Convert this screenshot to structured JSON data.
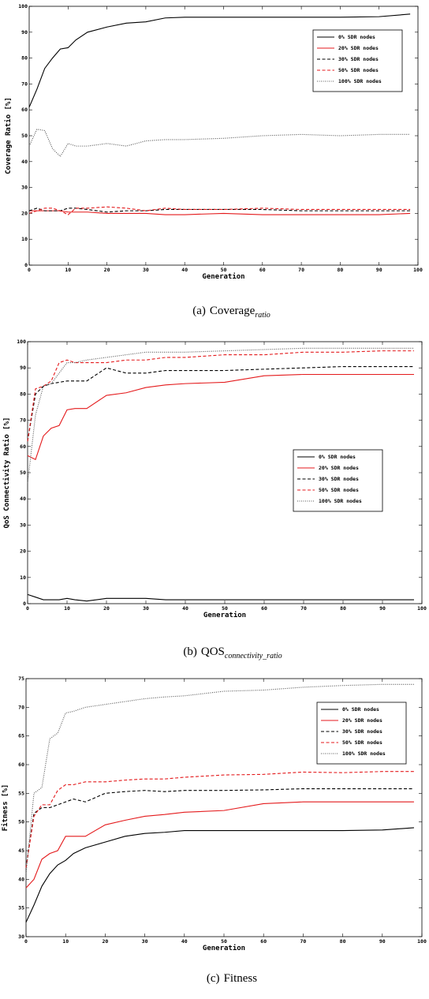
{
  "chart_data": [
    {
      "type": "line",
      "caption_label": "(a)",
      "caption_text": "Coverage",
      "caption_sub": "ratio",
      "xlabel": "Generation",
      "ylabel": "Coverage Ratio [%]",
      "x": [
        0,
        2,
        4,
        6,
        8,
        10,
        12,
        15,
        20,
        25,
        30,
        35,
        40,
        50,
        60,
        70,
        80,
        90,
        98
      ],
      "xlim": [
        0,
        100
      ],
      "xticks": [
        0,
        10,
        20,
        30,
        40,
        50,
        60,
        70,
        80,
        90,
        100
      ],
      "ylim": [
        0,
        100
      ],
      "yticks": [
        0,
        10,
        20,
        30,
        40,
        50,
        60,
        70,
        80,
        90,
        100
      ],
      "legend_position": "upper right",
      "series": [
        {
          "name": "0% SDR nodes",
          "color": "#000000",
          "dash": "solid",
          "values": [
            61,
            68,
            76,
            80,
            83.5,
            84,
            87,
            90,
            92,
            93.5,
            94,
            95.5,
            95.8,
            95.8,
            95.8,
            95.8,
            95.8,
            96,
            97
          ]
        },
        {
          "name": "20% SDR nodes",
          "color": "#e41a1c",
          "dash": "solid",
          "values": [
            21,
            21,
            21,
            21,
            21,
            20.5,
            20.5,
            20.5,
            20,
            20,
            20,
            19.5,
            19.5,
            20,
            19.5,
            19.5,
            19.5,
            19.5,
            20
          ]
        },
        {
          "name": "30% SDR nodes",
          "color": "#000000",
          "dash": "dashed",
          "values": [
            21,
            22,
            21,
            21,
            21,
            22,
            22,
            21.5,
            20.5,
            21,
            21,
            21.5,
            21.5,
            21.5,
            21.5,
            21,
            21,
            21,
            21
          ]
        },
        {
          "name": "50% SDR nodes",
          "color": "#e41a1c",
          "dash": "dashed",
          "values": [
            20,
            21,
            22,
            22,
            21,
            19.5,
            22,
            22,
            22.5,
            22,
            21,
            22,
            21.5,
            21.5,
            22,
            21.5,
            21.5,
            21.5,
            21.5
          ]
        },
        {
          "name": "100% SDR nodes",
          "color": "#555555",
          "dash": "dotted",
          "values": [
            46,
            52.5,
            52,
            45,
            42,
            47,
            46,
            46,
            47,
            46,
            48,
            48.5,
            48.5,
            49,
            50,
            50.5,
            50,
            50.5,
            50.5
          ]
        }
      ]
    },
    {
      "type": "line",
      "caption_label": "(b)",
      "caption_text": "QOS",
      "caption_sub": "connectivity_ratio",
      "xlabel": "Generation",
      "ylabel": "QoS Connectivity Ratio [%]",
      "x": [
        0,
        2,
        4,
        6,
        8,
        10,
        12,
        15,
        20,
        25,
        30,
        35,
        40,
        50,
        60,
        70,
        80,
        90,
        98
      ],
      "xlim": [
        0,
        100
      ],
      "xticks": [
        0,
        10,
        20,
        30,
        40,
        50,
        60,
        70,
        80,
        90,
        100
      ],
      "ylim": [
        0,
        100
      ],
      "yticks": [
        0,
        10,
        20,
        30,
        40,
        50,
        60,
        70,
        80,
        90,
        100
      ],
      "legend_position": "center right",
      "series": [
        {
          "name": "0% SDR nodes",
          "color": "#000000",
          "dash": "solid",
          "values": [
            3.5,
            2.5,
            1.5,
            1.5,
            1.5,
            2,
            1.5,
            1,
            2,
            2,
            2,
            1.5,
            1.5,
            1.5,
            1.5,
            1.5,
            1.5,
            1.5,
            1.5
          ]
        },
        {
          "name": "20% SDR nodes",
          "color": "#e41a1c",
          "dash": "solid",
          "values": [
            56.5,
            55,
            64,
            67,
            68,
            74,
            74.5,
            74.5,
            79.5,
            80.5,
            82.5,
            83.5,
            84,
            84.5,
            87,
            87.5,
            87.5,
            87.5,
            87.5
          ]
        },
        {
          "name": "30% SDR nodes",
          "color": "#000000",
          "dash": "dashed",
          "values": [
            62,
            80,
            83,
            84,
            84.5,
            85,
            85,
            85,
            90,
            88,
            88,
            89,
            89,
            89,
            89.5,
            90,
            90.5,
            90.5,
            90.5
          ]
        },
        {
          "name": "50% SDR nodes",
          "color": "#e41a1c",
          "dash": "dashed",
          "values": [
            62,
            82,
            83,
            85,
            92,
            93,
            92,
            92,
            92,
            93,
            93,
            94,
            94,
            95,
            95,
            96,
            96,
            96.5,
            96.5
          ]
        },
        {
          "name": "100% SDR nodes",
          "color": "#555555",
          "dash": "dotted",
          "values": [
            46,
            72,
            83,
            84,
            88,
            92,
            92,
            93,
            94,
            95,
            96,
            96,
            96,
            96.5,
            97,
            97.5,
            97.5,
            97.5,
            97.5
          ]
        }
      ]
    },
    {
      "type": "line",
      "caption_label": "(c)",
      "caption_text": "Fitness",
      "xlabel": "Generation",
      "ylabel": "Fitness [%]",
      "x": [
        0,
        2,
        4,
        6,
        8,
        10,
        12,
        15,
        20,
        25,
        30,
        35,
        40,
        50,
        60,
        70,
        80,
        90,
        98
      ],
      "xlim": [
        0,
        100
      ],
      "xticks": [
        0,
        10,
        20,
        30,
        40,
        50,
        60,
        70,
        80,
        90,
        100
      ],
      "ylim": [
        30,
        75
      ],
      "yticks": [
        30,
        35,
        40,
        45,
        50,
        55,
        60,
        65,
        70,
        75
      ],
      "legend_position": "upper right",
      "series": [
        {
          "name": "0% SDR nodes",
          "color": "#000000",
          "dash": "solid",
          "values": [
            32.5,
            35.5,
            38.8,
            41,
            42.5,
            43.3,
            44.5,
            45.5,
            46.5,
            47.5,
            48,
            48.2,
            48.5,
            48.5,
            48.5,
            48.5,
            48.5,
            48.6,
            49
          ]
        },
        {
          "name": "20% SDR nodes",
          "color": "#e41a1c",
          "dash": "solid",
          "values": [
            38.5,
            40,
            43.5,
            44.5,
            45,
            47.5,
            47.5,
            47.5,
            49.5,
            50.3,
            51,
            51.3,
            51.7,
            52,
            53.2,
            53.5,
            53.5,
            53.5,
            53.5
          ]
        },
        {
          "name": "30% SDR nodes",
          "color": "#000000",
          "dash": "dashed",
          "values": [
            42,
            51.5,
            52.5,
            52.5,
            53,
            53.5,
            54,
            53.5,
            55,
            55.3,
            55.5,
            55.3,
            55.5,
            55.5,
            55.6,
            55.8,
            55.8,
            55.8,
            55.8
          ]
        },
        {
          "name": "50% SDR nodes",
          "color": "#e41a1c",
          "dash": "dashed",
          "values": [
            42,
            51,
            53,
            53,
            55.5,
            56.5,
            56.5,
            57,
            57,
            57.3,
            57.5,
            57.5,
            57.8,
            58.2,
            58.3,
            58.7,
            58.6,
            58.8,
            58.8
          ]
        },
        {
          "name": "100% SDR nodes",
          "color": "#555555",
          "dash": "dotted",
          "values": [
            41,
            55,
            56,
            64.5,
            65.5,
            69,
            69.3,
            70,
            70.5,
            71,
            71.5,
            71.8,
            72,
            72.8,
            73,
            73.5,
            73.8,
            74,
            74
          ]
        }
      ]
    }
  ]
}
